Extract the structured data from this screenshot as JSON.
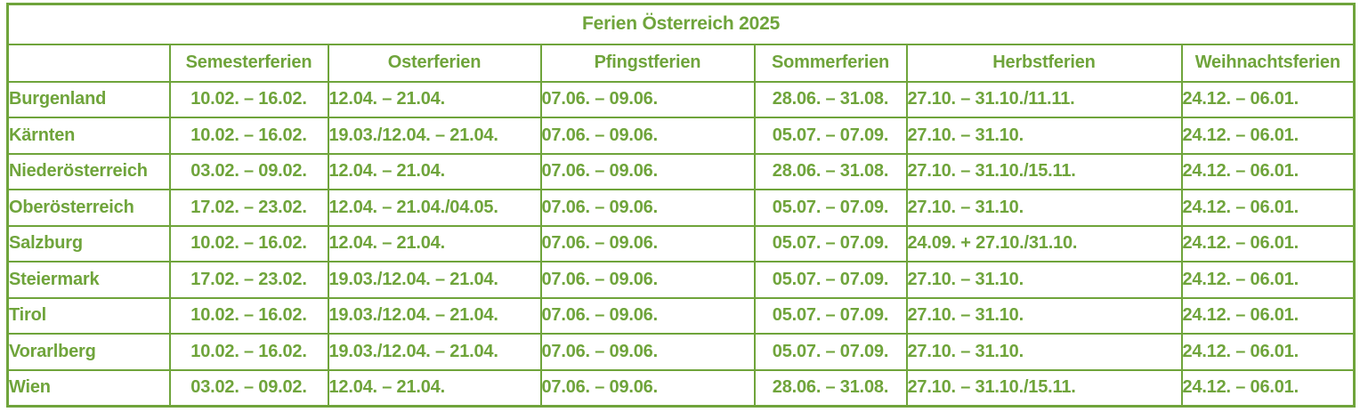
{
  "title": "Ferien Österreich 2025",
  "columns": [
    "",
    "Semesterferien",
    "Osterferien",
    "Pfingstferien",
    "Sommerferien",
    "Herbstferien",
    "Weihnachtsferien"
  ],
  "rows": [
    [
      "Burgenland",
      "10.02. – 16.02.",
      "12.04. – 21.04.",
      "07.06. – 09.06.",
      "28.06. – 31.08.",
      "27.10. – 31.10./11.11.",
      "24.12. – 06.01."
    ],
    [
      "Kärnten",
      "10.02. – 16.02.",
      "19.03./12.04. – 21.04.",
      "07.06. – 09.06.",
      "05.07. – 07.09.",
      "27.10. – 31.10.",
      "24.12. – 06.01."
    ],
    [
      "Niederösterreich",
      "03.02. – 09.02.",
      "12.04. – 21.04.",
      "07.06. – 09.06.",
      "28.06. – 31.08.",
      "27.10. – 31.10./15.11.",
      "24.12. – 06.01."
    ],
    [
      "Oberösterreich",
      "17.02. – 23.02.",
      "12.04. – 21.04./04.05.",
      "07.06. – 09.06.",
      "05.07. – 07.09.",
      "27.10. – 31.10.",
      "24.12. – 06.01."
    ],
    [
      "Salzburg",
      "10.02. – 16.02.",
      "12.04. – 21.04.",
      "07.06. – 09.06.",
      "05.07. – 07.09.",
      "24.09. + 27.10./31.10.",
      "24.12. – 06.01."
    ],
    [
      "Steiermark",
      "17.02. – 23.02.",
      "19.03./12.04. – 21.04.",
      "07.06. – 09.06.",
      "05.07. – 07.09.",
      "27.10. – 31.10.",
      "24.12. – 06.01."
    ],
    [
      "Tirol",
      "10.02. – 16.02.",
      "19.03./12.04. – 21.04.",
      "07.06. – 09.06.",
      "05.07. – 07.09.",
      "27.10. – 31.10.",
      "24.12. – 06.01."
    ],
    [
      "Vorarlberg",
      "10.02. – 16.02.",
      "19.03./12.04. – 21.04.",
      "07.06. – 09.06.",
      "05.07. – 07.09.",
      "27.10. – 31.10.",
      "24.12. – 06.01."
    ],
    [
      "Wien",
      "03.02. – 09.02.",
      "12.04. – 21.04.",
      "07.06. – 09.06.",
      "28.06. – 31.08.",
      "27.10. – 31.10./15.11.",
      "24.12. – 06.01."
    ]
  ],
  "colors": {
    "green": "#6fa43b",
    "background": "#ffffff"
  }
}
